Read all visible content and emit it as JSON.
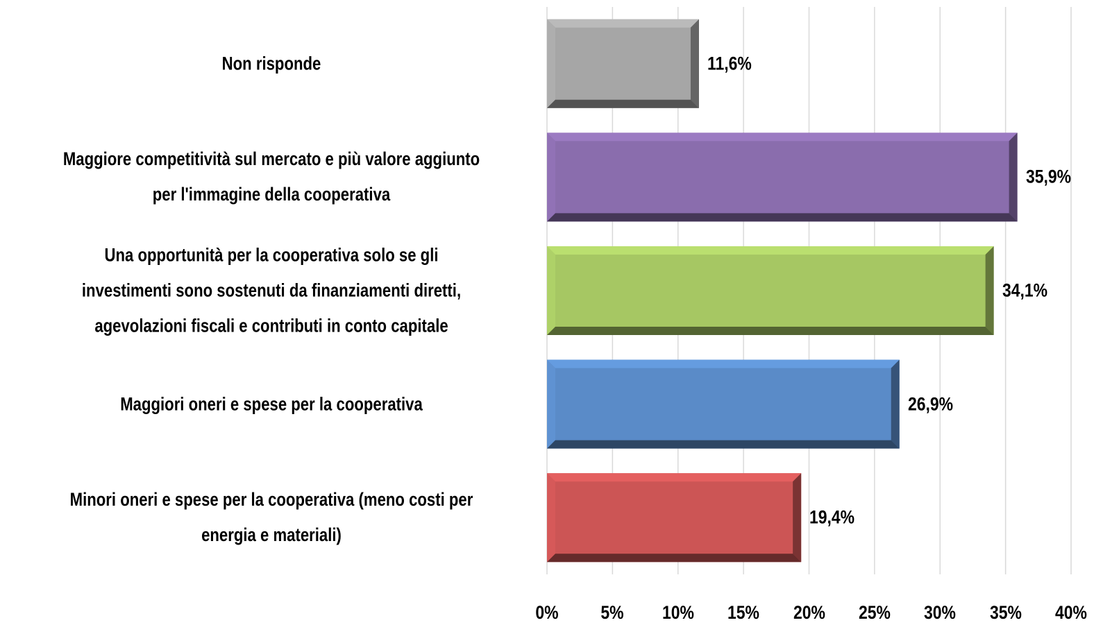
{
  "chart_data": {
    "type": "bar",
    "orientation": "horizontal",
    "categories": [
      "Non risponde",
      "Maggiore competitività sul mercato e più valore aggiunto\nper l'immagine della cooperativa",
      "Una opportunità per la cooperativa solo se gli\ninvestimenti sono sostenuti da finanziamenti diretti,\nagevolazioni fiscali e contributi in conto capitale",
      "Maggiori oneri e spese per la cooperativa",
      "Minori oneri e spese per la cooperativa (meno costi per\nenergia e materiali)"
    ],
    "values": [
      11.6,
      35.9,
      34.1,
      26.9,
      19.4
    ],
    "value_labels": [
      "11,6%",
      "35,9%",
      "34,1%",
      "26,9%",
      "19,4%"
    ],
    "colors": [
      "#a6a6a6",
      "#8a6dad",
      "#a6c763",
      "#5a8bc8",
      "#cc5555"
    ],
    "xlim": [
      0,
      40
    ],
    "xticks": [
      {
        "value": 0,
        "label": "0%"
      },
      {
        "value": 5,
        "label": "5%"
      },
      {
        "value": 10,
        "label": "10%"
      },
      {
        "value": 15,
        "label": "15%"
      },
      {
        "value": 20,
        "label": "20%"
      },
      {
        "value": 25,
        "label": "25%"
      },
      {
        "value": 30,
        "label": "30%"
      },
      {
        "value": 35,
        "label": "35%"
      },
      {
        "value": 40,
        "label": "40%"
      }
    ],
    "grid": true
  }
}
